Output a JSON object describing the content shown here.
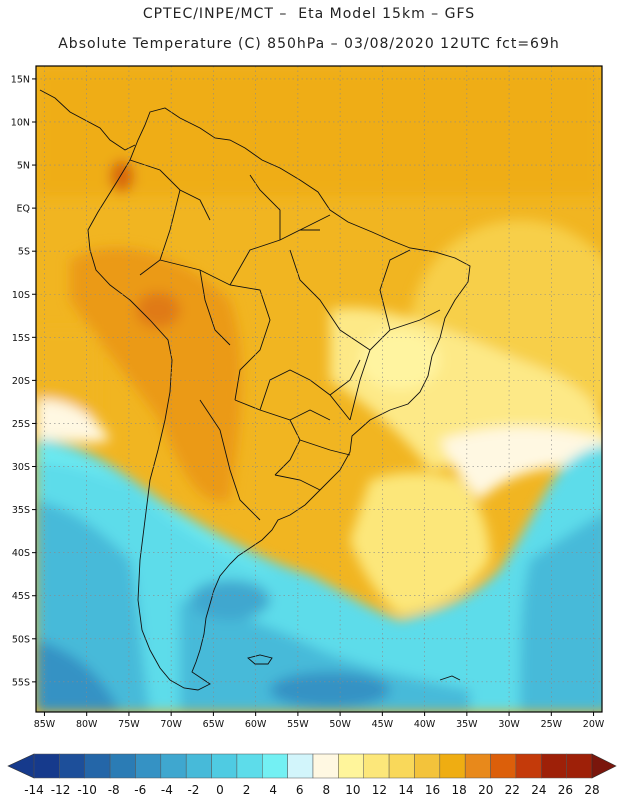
{
  "header": {
    "line1": "CPTEC/INPE/MCT –  Eta Model 15km – GFS",
    "line2": "Absolute Temperature (C) 850hPa – 03/08/2020 12UTC fct=69h"
  },
  "map": {
    "lon_ticks": [
      "85W",
      "80W",
      "75W",
      "70W",
      "65W",
      "60W",
      "55W",
      "50W",
      "45W",
      "40W",
      "35W",
      "30W",
      "25W",
      "20W"
    ],
    "lat_ticks": [
      "15N",
      "10N",
      "5N",
      "EQ",
      "5S",
      "10S",
      "15S",
      "20S",
      "25S",
      "30S",
      "35S",
      "40S",
      "45S",
      "50S",
      "55S"
    ],
    "lon_range": [
      -86,
      -19
    ],
    "lat_range": [
      16.5,
      -58.5
    ]
  },
  "colorbar": {
    "labels": [
      "-14",
      "-12",
      "-10",
      "-8",
      "-6",
      "-4",
      "-2",
      "0",
      "2",
      "4",
      "6",
      "8",
      "10",
      "12",
      "14",
      "16",
      "18",
      "20",
      "22",
      "24",
      "26",
      "28"
    ],
    "colors": [
      "#163a8c",
      "#1d4f9a",
      "#2466a8",
      "#2b7cb5",
      "#3592c4",
      "#3fa7cf",
      "#47bad9",
      "#4fcbe2",
      "#5ddcea",
      "#73f0f3",
      "#d2f5fb",
      "#fff8e2",
      "#fff59b",
      "#fce77a",
      "#f9d85a",
      "#f3c33b",
      "#efad12",
      "#e8891b",
      "#dc5f0a",
      "#c43a0a",
      "#9e2008",
      "#7a160c"
    ]
  },
  "colors": {
    "land_line": "#111111",
    "grid": "#8a8a8a",
    "frame": "#000000"
  }
}
